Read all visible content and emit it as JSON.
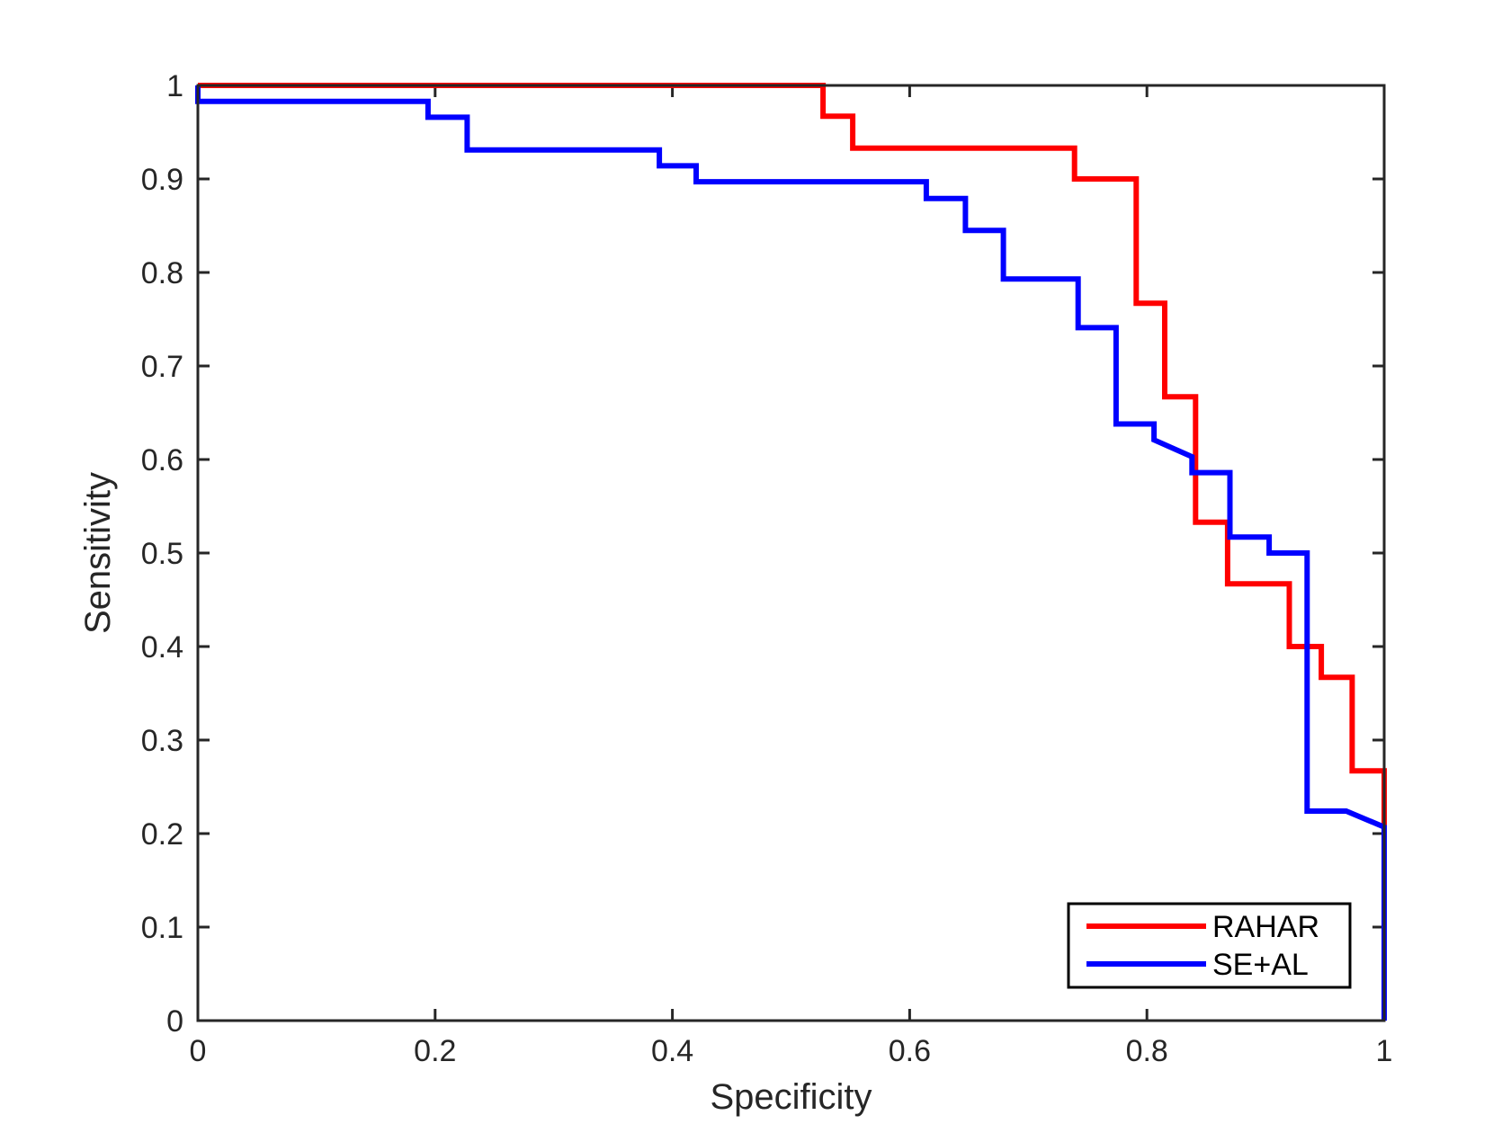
{
  "chart_data": {
    "type": "line",
    "title": "",
    "xlabel": "Specificity",
    "ylabel": "Sensitivity",
    "xlim": [
      0,
      1
    ],
    "ylim": [
      0,
      1
    ],
    "xticks": [
      0,
      0.2,
      0.4,
      0.6,
      0.8,
      1
    ],
    "yticks": [
      0,
      0.1,
      0.2,
      0.3,
      0.4,
      0.5,
      0.6,
      0.7,
      0.8,
      0.9,
      1
    ],
    "xtick_labels": [
      "0",
      "0.2",
      "0.4",
      "0.6",
      "0.8",
      "1"
    ],
    "ytick_labels": [
      "0",
      "0.1",
      "0.2",
      "0.3",
      "0.4",
      "0.5",
      "0.6",
      "0.7",
      "0.8",
      "0.9",
      "1"
    ],
    "grid": false,
    "legend_position": "bottom-right",
    "series": [
      {
        "name": "RAHAR",
        "color": "#ff0000",
        "points": [
          [
            0,
            1
          ],
          [
            0.527,
            1
          ],
          [
            0.527,
            0.967
          ],
          [
            0.552,
            0.967
          ],
          [
            0.552,
            0.933
          ],
          [
            0.739,
            0.933
          ],
          [
            0.739,
            0.9
          ],
          [
            0.791,
            0.9
          ],
          [
            0.791,
            0.767
          ],
          [
            0.815,
            0.767
          ],
          [
            0.815,
            0.667
          ],
          [
            0.841,
            0.667
          ],
          [
            0.841,
            0.533
          ],
          [
            0.868,
            0.533
          ],
          [
            0.868,
            0.467
          ],
          [
            0.92,
            0.467
          ],
          [
            0.92,
            0.4
          ],
          [
            0.947,
            0.4
          ],
          [
            0.947,
            0.367
          ],
          [
            0.973,
            0.367
          ],
          [
            0.973,
            0.267
          ],
          [
            1,
            0.267
          ],
          [
            1,
            0.2
          ]
        ]
      },
      {
        "name": "SE+AL",
        "color": "#0000ff",
        "points": [
          [
            0,
            1
          ],
          [
            0,
            0.983
          ],
          [
            0.194,
            0.983
          ],
          [
            0.194,
            0.966
          ],
          [
            0.227,
            0.966
          ],
          [
            0.227,
            0.931
          ],
          [
            0.389,
            0.931
          ],
          [
            0.389,
            0.914
          ],
          [
            0.42,
            0.914
          ],
          [
            0.42,
            0.897
          ],
          [
            0.614,
            0.897
          ],
          [
            0.614,
            0.879
          ],
          [
            0.647,
            0.879
          ],
          [
            0.647,
            0.845
          ],
          [
            0.679,
            0.845
          ],
          [
            0.679,
            0.793
          ],
          [
            0.742,
            0.793
          ],
          [
            0.742,
            0.741
          ],
          [
            0.774,
            0.741
          ],
          [
            0.774,
            0.638
          ],
          [
            0.806,
            0.638
          ],
          [
            0.806,
            0.621
          ],
          [
            0.838,
            0.603
          ],
          [
            0.838,
            0.586
          ],
          [
            0.87,
            0.586
          ],
          [
            0.87,
            0.517
          ],
          [
            0.903,
            0.517
          ],
          [
            0.903,
            0.5
          ],
          [
            0.935,
            0.5
          ],
          [
            0.935,
            0.224
          ],
          [
            0.968,
            0.224
          ],
          [
            1,
            0.207
          ],
          [
            1,
            0
          ]
        ]
      }
    ]
  }
}
